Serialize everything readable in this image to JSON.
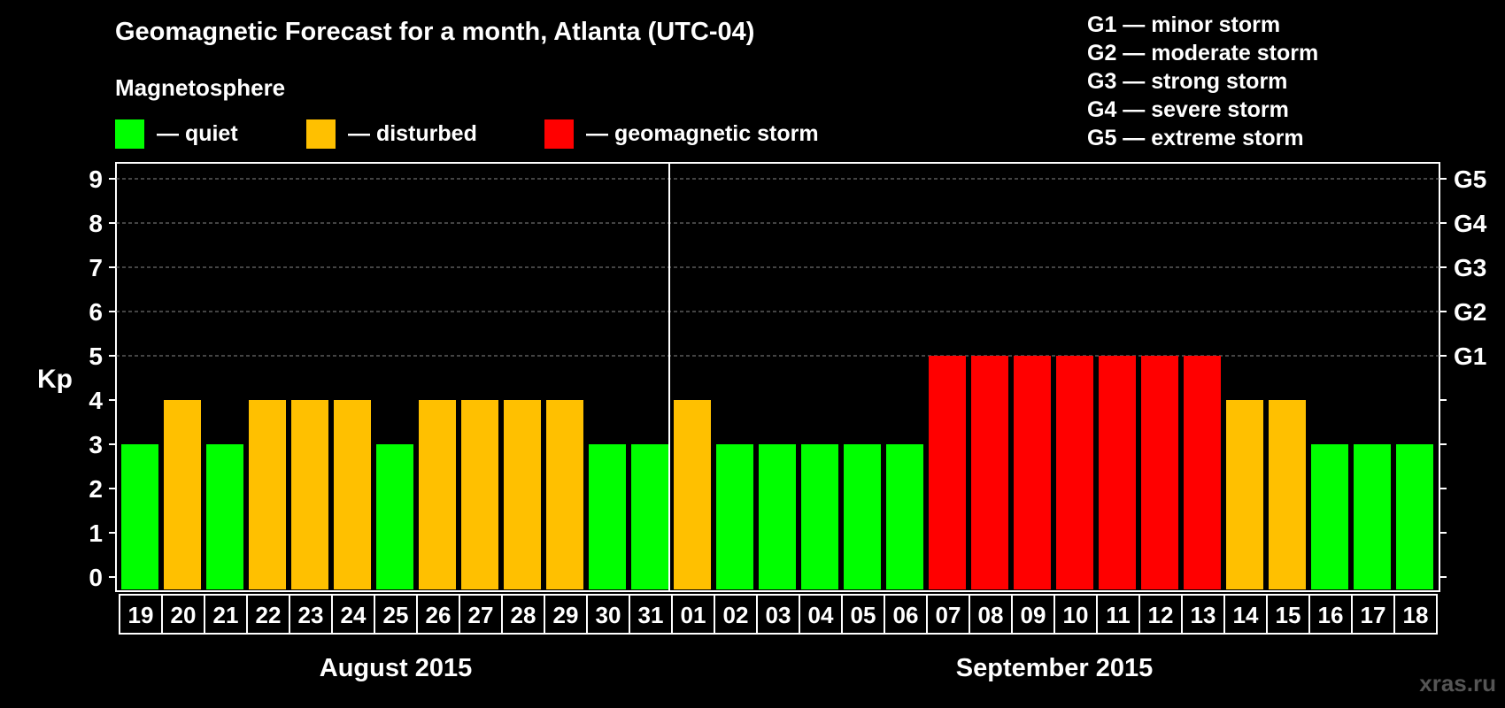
{
  "title": "Geomagnetic Forecast for a month, Atlanta (UTC-04)",
  "subtitle": "Magnetosphere",
  "legend": [
    {
      "label": "— quiet",
      "color": "#00ff00"
    },
    {
      "label": "— disturbed",
      "color": "#ffc000"
    },
    {
      "label": "— geomagnetic storm",
      "color": "#ff0000"
    }
  ],
  "storm_key": [
    "G1 — minor storm",
    "G2 — moderate storm",
    "G3 — strong storm",
    "G4 — severe storm",
    "G5 — extreme storm"
  ],
  "watermark": "xras.ru",
  "chart_data": {
    "type": "bar",
    "ylabel": "Kp",
    "ylim": [
      0,
      9
    ],
    "yticks": [
      0,
      1,
      2,
      3,
      4,
      5,
      6,
      7,
      8,
      9
    ],
    "grid": true,
    "right_axis": [
      {
        "kp": 5,
        "label": "G1"
      },
      {
        "kp": 6,
        "label": "G2"
      },
      {
        "kp": 7,
        "label": "G3"
      },
      {
        "kp": 8,
        "label": "G4"
      },
      {
        "kp": 9,
        "label": "G5"
      }
    ],
    "months": [
      {
        "label": "August 2015",
        "days": [
          "19",
          "20",
          "21",
          "22",
          "23",
          "24",
          "25",
          "26",
          "27",
          "28",
          "29",
          "30",
          "31"
        ]
      },
      {
        "label": "September 2015",
        "days": [
          "01",
          "02",
          "03",
          "04",
          "05",
          "06",
          "07",
          "08",
          "09",
          "10",
          "11",
          "12",
          "13",
          "14",
          "15",
          "16",
          "17",
          "18"
        ]
      }
    ],
    "values": [
      3,
      4,
      3,
      4,
      4,
      4,
      3,
      4,
      4,
      4,
      4,
      3,
      3,
      4,
      3,
      3,
      3,
      3,
      3,
      5,
      5,
      5,
      5,
      5,
      5,
      5,
      4,
      4,
      3,
      3,
      3
    ],
    "colors": {
      "quiet": "#00ff00",
      "disturbed": "#ffc000",
      "storm": "#ff0000"
    }
  }
}
